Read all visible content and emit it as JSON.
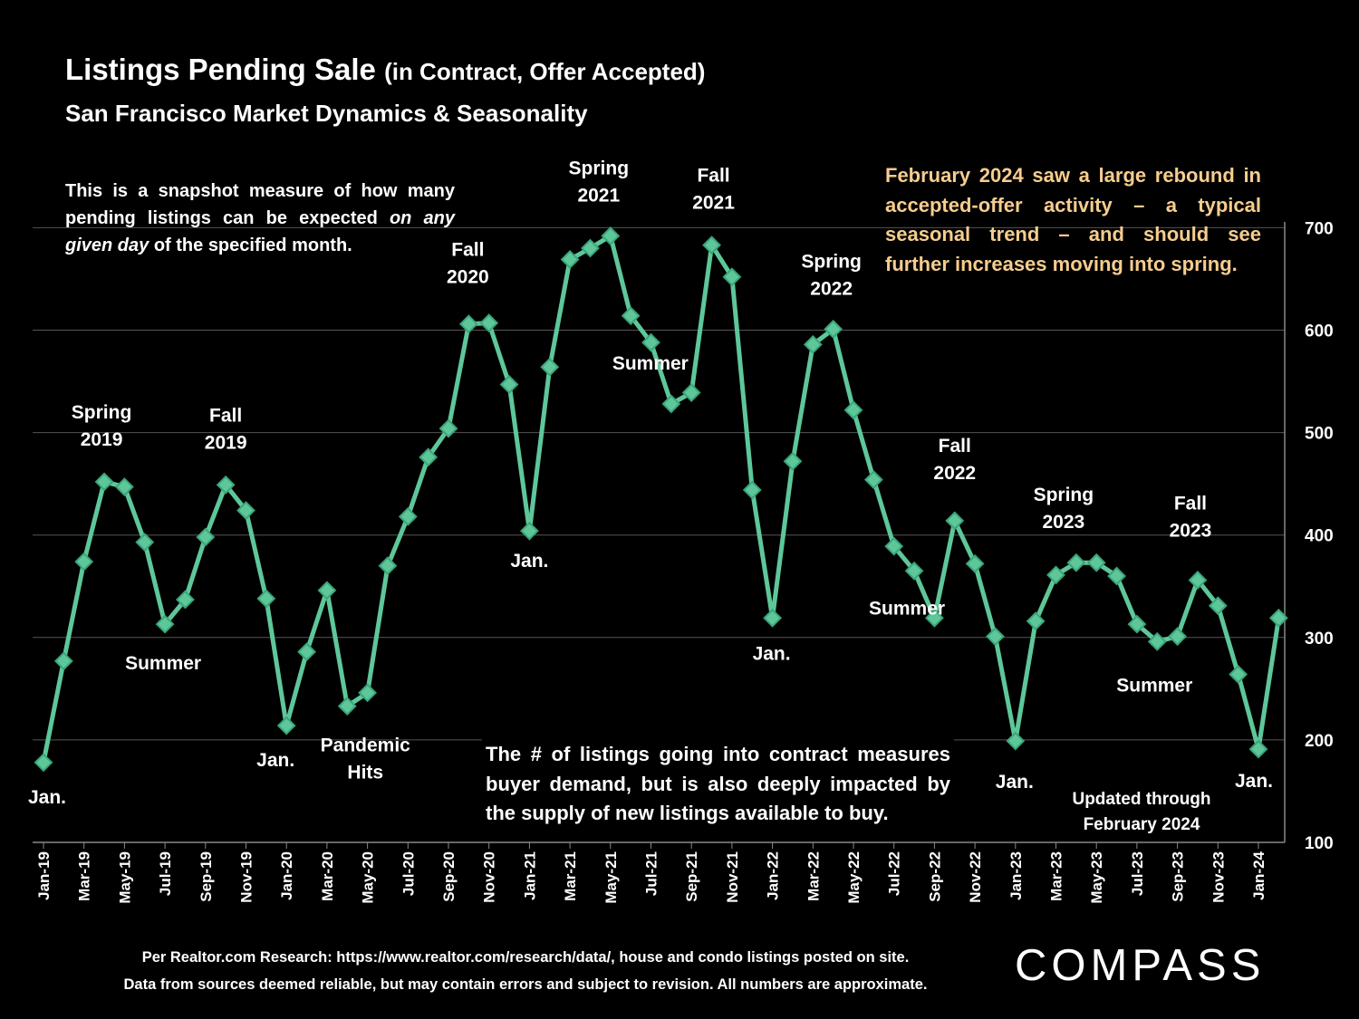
{
  "title": {
    "main": "Listings Pending Sale",
    "paren": "(in Contract, Offer Accepted)",
    "subtitle": "San Francisco Market Dynamics & Seasonality"
  },
  "notes": {
    "left_1": "This is a snapshot measure of how many pending listings can be expected ",
    "left_em": "on any given day",
    "left_2": " of the specified month.",
    "right_1": "February 2024 saw a large rebound in accepted-offer activity – a typical seasonal trend – and should see",
    "right_2": "further increases moving into spring.",
    "bottom": "The # of listings going into contract measures buyer demand, but is also deeply impacted by the supply of new listings available to buy.",
    "updated_1": "Updated through",
    "updated_2": "February 2024"
  },
  "footer": {
    "line1": "Per Realtor.com Research:  https://www.realtor.com/research/data/, house and condo listings posted on site.",
    "line2": "Data from sources deemed reliable, but may contain errors and subject to revision. All numbers are approximate."
  },
  "logo": {
    "text": "COMPASS"
  },
  "colors": {
    "line": "#5ec79a",
    "marker": "#5ec79a",
    "marker_edge": "#3aa57a",
    "grid": "#555555",
    "text": "#ffffff",
    "note_highlight": "#f6cd8e"
  },
  "chart_data": {
    "type": "line",
    "ylim": [
      100,
      700
    ],
    "yticks": [
      "100",
      "200",
      "300",
      "400",
      "500",
      "600",
      "700"
    ],
    "y_axis_side": "right",
    "grid": true,
    "x_tick_labels": [
      "Jan-19",
      "Mar-19",
      "May-19",
      "Jul-19",
      "Sep-19",
      "Nov-19",
      "Jan-20",
      "Mar-20",
      "May-20",
      "Jul-20",
      "Sep-20",
      "Nov-20",
      "Jan-21",
      "Mar-21",
      "May-21",
      "Jul-21",
      "Sep-21",
      "Nov-21",
      "Jan-22",
      "Mar-22",
      "May-22",
      "Jul-22",
      "Sep-22",
      "Nov-22",
      "Jan-23",
      "Mar-23",
      "May-23",
      "Jul-23",
      "Sep-23",
      "Nov-23",
      "Jan-24"
    ],
    "months": [
      "Jan-19",
      "Feb-19",
      "Mar-19",
      "Apr-19",
      "May-19",
      "Jun-19",
      "Jul-19",
      "Aug-19",
      "Sep-19",
      "Oct-19",
      "Nov-19",
      "Dec-19",
      "Jan-20",
      "Feb-20",
      "Mar-20",
      "Apr-20",
      "May-20",
      "Jun-20",
      "Jul-20",
      "Aug-20",
      "Sep-20",
      "Oct-20",
      "Nov-20",
      "Dec-20",
      "Jan-21",
      "Feb-21",
      "Mar-21",
      "Apr-21",
      "May-21",
      "Jun-21",
      "Jul-21",
      "Aug-21",
      "Sep-21",
      "Oct-21",
      "Nov-21",
      "Dec-21",
      "Jan-22",
      "Feb-22",
      "Mar-22",
      "Apr-22",
      "May-22",
      "Jun-22",
      "Jul-22",
      "Aug-22",
      "Sep-22",
      "Oct-22",
      "Nov-22",
      "Dec-22",
      "Jan-23",
      "Feb-23",
      "Mar-23",
      "Apr-23",
      "May-23",
      "Jun-23",
      "Jul-23",
      "Aug-23",
      "Sep-23",
      "Oct-23",
      "Nov-23",
      "Dec-23",
      "Jan-24",
      "Feb-24"
    ],
    "values": [
      178,
      277,
      374,
      452,
      447,
      393,
      313,
      337,
      398,
      449,
      424,
      338,
      214,
      286,
      346,
      233,
      246,
      370,
      418,
      476,
      504,
      606,
      607,
      547,
      404,
      564,
      669,
      680,
      692,
      614,
      588,
      528,
      539,
      683,
      652,
      444,
      319,
      472,
      586,
      601,
      522,
      454,
      389,
      365,
      319,
      414,
      372,
      301,
      199,
      316,
      361,
      373,
      373,
      360,
      313,
      296,
      301,
      356,
      331,
      264,
      191,
      319
    ],
    "annotations": [
      {
        "text": "Jan.",
        "month": "Jan-19",
        "value": 178
      },
      {
        "text": "Spring 2019",
        "month": "Apr-19",
        "value": 452
      },
      {
        "text": "Summer",
        "month": "Jul-19",
        "value": 313
      },
      {
        "text": "Fall 2019",
        "month": "Oct-19",
        "value": 449
      },
      {
        "text": "Jan.",
        "month": "Jan-20",
        "value": 214
      },
      {
        "text": "Pandemic Hits",
        "month": "Apr-20",
        "value": 233
      },
      {
        "text": "Fall 2020",
        "month": "Oct-20",
        "value": 606
      },
      {
        "text": "Jan.",
        "month": "Jan-21",
        "value": 404
      },
      {
        "text": "Spring 2021",
        "month": "May-21",
        "value": 692
      },
      {
        "text": "Summer",
        "month": "Aug-21",
        "value": 528
      },
      {
        "text": "Fall 2021",
        "month": "Oct-21",
        "value": 683
      },
      {
        "text": "Jan.",
        "month": "Jan-22",
        "value": 319
      },
      {
        "text": "Spring 2022",
        "month": "Apr-22",
        "value": 601
      },
      {
        "text": "Summer",
        "month": "Aug-22",
        "value": 365
      },
      {
        "text": "Fall 2022",
        "month": "Oct-22",
        "value": 414
      },
      {
        "text": "Jan.",
        "month": "Jan-23",
        "value": 199
      },
      {
        "text": "Spring 2023",
        "month": "Apr-23",
        "value": 373
      },
      {
        "text": "Summer",
        "month": "Aug-23",
        "value": 296
      },
      {
        "text": "Fall 2023",
        "month": "Oct-23",
        "value": 356
      },
      {
        "text": "Jan.",
        "month": "Jan-24",
        "value": 191
      }
    ]
  }
}
